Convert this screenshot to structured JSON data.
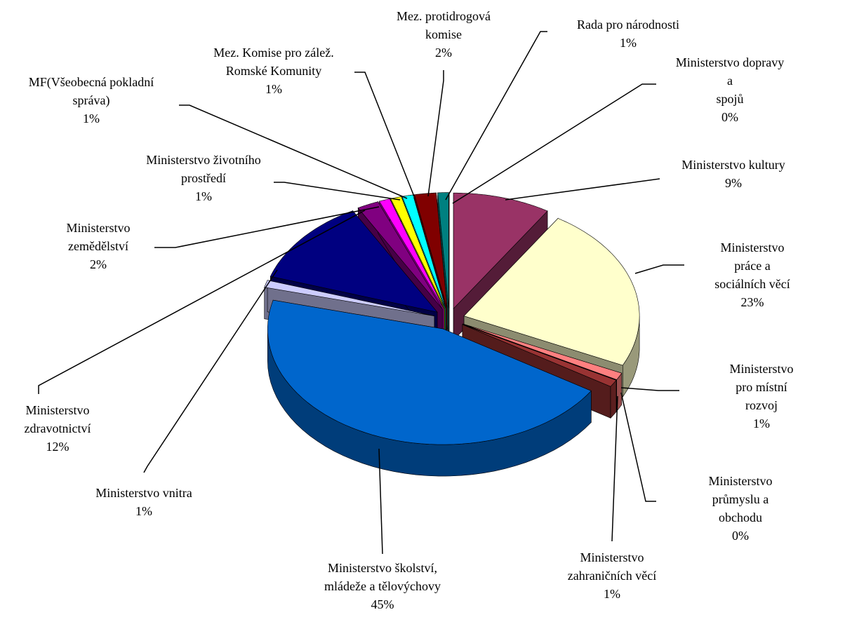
{
  "chart_data": {
    "type": "pie3d",
    "categories": [
      "Ministerstvo kultury",
      "Ministerstvo práce a\nsociálních věcí",
      "Ministerstvo pro místní\nrozvoj",
      "Ministerstvo průmyslu a\nobchodu",
      "Ministerstvo\nzahraničních věcí",
      "Ministerstvo školství,\nmládeže a tělovýchovy",
      "Ministerstvo vnitra",
      "Ministerstvo\nzdravotnictví",
      "Ministerstvo\nzemědělství",
      "Ministerstvo životního\nprostředí",
      "MF(Všeobecná pokladní\nspráva)",
      "Mez. Komise pro zálež.\nRomské Komunity",
      "Mez. protidrogová\nkomise",
      "Rada pro národnosti",
      "Ministerstvo dopravy a\nspojů"
    ],
    "values": [
      9,
      23,
      1,
      0,
      1,
      45,
      1,
      12,
      2,
      1,
      1,
      1,
      2,
      1,
      0
    ],
    "value_labels": [
      "9%",
      "23%",
      "1%",
      "0%",
      "1%",
      "45%",
      "1%",
      "12%",
      "2%",
      "1%",
      "1%",
      "1%",
      "2%",
      "1%",
      "0%"
    ],
    "colors": [
      "#993366",
      "#FFFFCC",
      "#FF8080",
      "#800080",
      "#993333",
      "#0066CC",
      "#CCCCFF",
      "#000080",
      "#800080",
      "#FF00FF",
      "#FFFF00",
      "#00FFFF",
      "#800000",
      "#008080",
      "#0000FF"
    ]
  }
}
